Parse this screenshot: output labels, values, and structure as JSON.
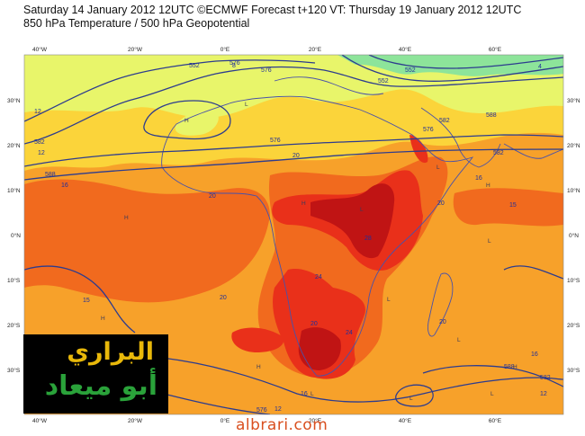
{
  "header": {
    "line1": "Saturday 14 January 2012 12UTC ©ECMWF Forecast t+120 VT: Thursday 19 January 2012 12UTC",
    "line2": "850 hPa Temperature / 500 hPa Geopotential"
  },
  "axes": {
    "longitude_ticks": [
      "40°W",
      "20°W",
      "0°E",
      "20°E",
      "40°E",
      "60°E"
    ],
    "latitude_ticks_left": [
      "30°N",
      "20°N",
      "10°N",
      "0°N",
      "10°S",
      "20°S",
      "30°S"
    ],
    "latitude_ticks_right": [
      "30°N",
      "20°N",
      "10°N",
      "0°N",
      "10°S",
      "20°S",
      "30°S"
    ]
  },
  "contour_labels": {
    "geopotential": [
      "552",
      "576",
      "576",
      "582",
      "576",
      "552",
      "588",
      "576",
      "582",
      "588",
      "582",
      "588",
      "576",
      "582",
      "552"
    ],
    "temperature": [
      "12",
      "16",
      "20",
      "12",
      "15",
      "20",
      "24",
      "20",
      "20",
      "16",
      "15",
      "20",
      "24",
      "20",
      "16",
      "12",
      "12",
      "16",
      "28",
      "8",
      "4"
    ]
  },
  "pressure_markers": [
    "H",
    "L",
    "H",
    "L",
    "H",
    "L",
    "H",
    "L",
    "H",
    "L",
    "L",
    "H",
    "L",
    "H",
    "L",
    "L"
  ],
  "logo": {
    "line1": "البراري",
    "line2": "أبو ميعاد"
  },
  "watermark": "albrari.com",
  "colors": {
    "land_outline": "#4a52a8",
    "geopotential_contour": "#2d3c8e",
    "band_cold": "#8de49a",
    "band_cool": "#e8f56a",
    "band_mild": "#fbd43a",
    "band_warm": "#f7a12a",
    "band_hot": "#f16a1e",
    "band_very_hot": "#e9301a",
    "band_extreme": "#c01414",
    "logo_gold": "#e8b80a",
    "logo_green": "#2aa23a",
    "watermark": "#d94f1f"
  }
}
